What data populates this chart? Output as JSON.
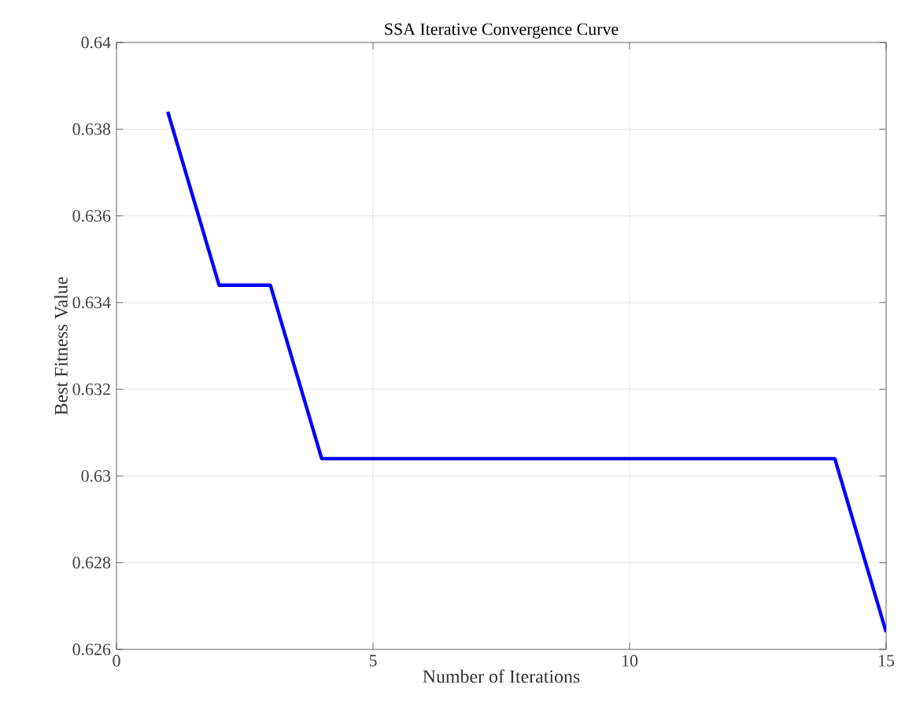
{
  "chart_data": {
    "type": "line",
    "title": "SSA Iterative Convergence Curve",
    "xlabel": "Number of Iterations",
    "ylabel": "Best Fitness Value",
    "x": [
      1,
      2,
      3,
      4,
      5,
      6,
      7,
      8,
      9,
      10,
      11,
      12,
      13,
      14,
      15
    ],
    "series": [
      {
        "color": "#0000ff",
        "values": [
          0.6384,
          0.6344,
          0.6344,
          0.6304,
          0.6304,
          0.6304,
          0.6304,
          0.6304,
          0.6304,
          0.6304,
          0.6304,
          0.6304,
          0.6304,
          0.6304,
          0.6264
        ]
      }
    ],
    "xlim": [
      0,
      15
    ],
    "ylim": [
      0.626,
      0.64
    ],
    "xticks": [
      0,
      5,
      10,
      15
    ],
    "yticks": [
      0.626,
      0.628,
      0.63,
      0.632,
      0.634,
      0.636,
      0.638,
      0.64
    ],
    "grid": true
  }
}
